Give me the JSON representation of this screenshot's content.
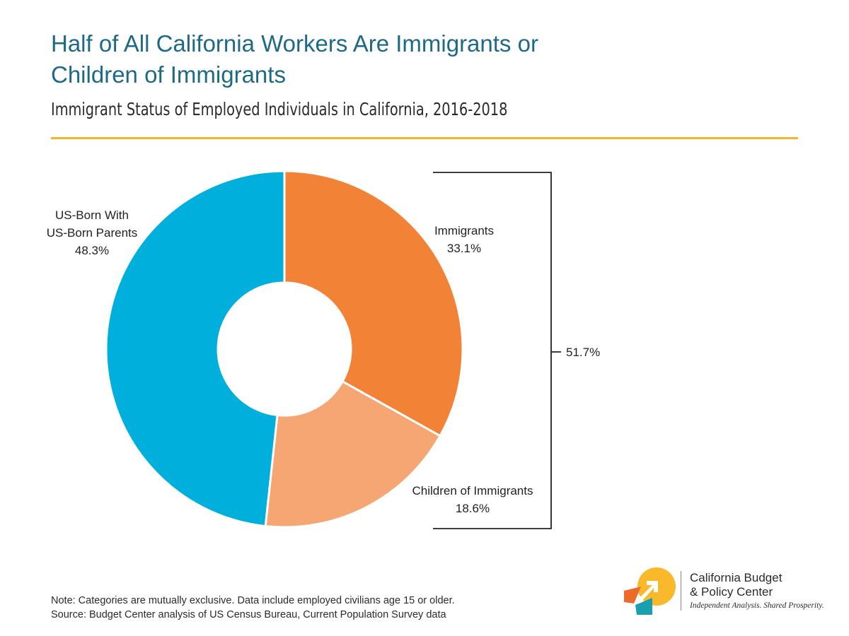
{
  "title_line1": "Half of All California Workers Are Immigrants or",
  "title_line2": "Children of Immigrants",
  "subtitle": "Immigrant Status of Employed Individuals in California, 2016-2018",
  "chart_data": {
    "type": "pie",
    "variant": "donut",
    "categories": [
      "Immigrants",
      "Children of Immigrants",
      "US-Born With US-Born Parents"
    ],
    "values": [
      33.1,
      18.6,
      48.3
    ],
    "value_labels": [
      "33.1%",
      "18.6%",
      "48.3%"
    ],
    "label_lines": [
      [
        "Immigrants",
        "33.1%"
      ],
      [
        "Children of Immigrants",
        "18.6%"
      ],
      [
        "US-Born With",
        "US-Born Parents",
        "48.3%"
      ]
    ],
    "colors": [
      "#f28236",
      "#f6a672",
      "#00afdb"
    ],
    "bracket": {
      "categories": [
        "Immigrants",
        "Children of Immigrants"
      ],
      "value": 51.7,
      "label": "51.7%"
    },
    "start_angle": "12 o'clock",
    "direction": "clockwise",
    "legend": "none"
  },
  "footnote_line1": "Note: Categories are mutually exclusive. Data include employed civilians age 15 or older.",
  "footnote_line2": "Source: Budget Center analysis of US Census Bureau, Current Population Survey data",
  "logo": {
    "name_line1": "California Budget",
    "name_line2": "& Policy Center",
    "tagline": "Independent Analysis. Shared Prosperity.",
    "colors": {
      "yellow": "#f9b92b",
      "orange": "#ee6a2b",
      "teal": "#1a9fae"
    }
  }
}
